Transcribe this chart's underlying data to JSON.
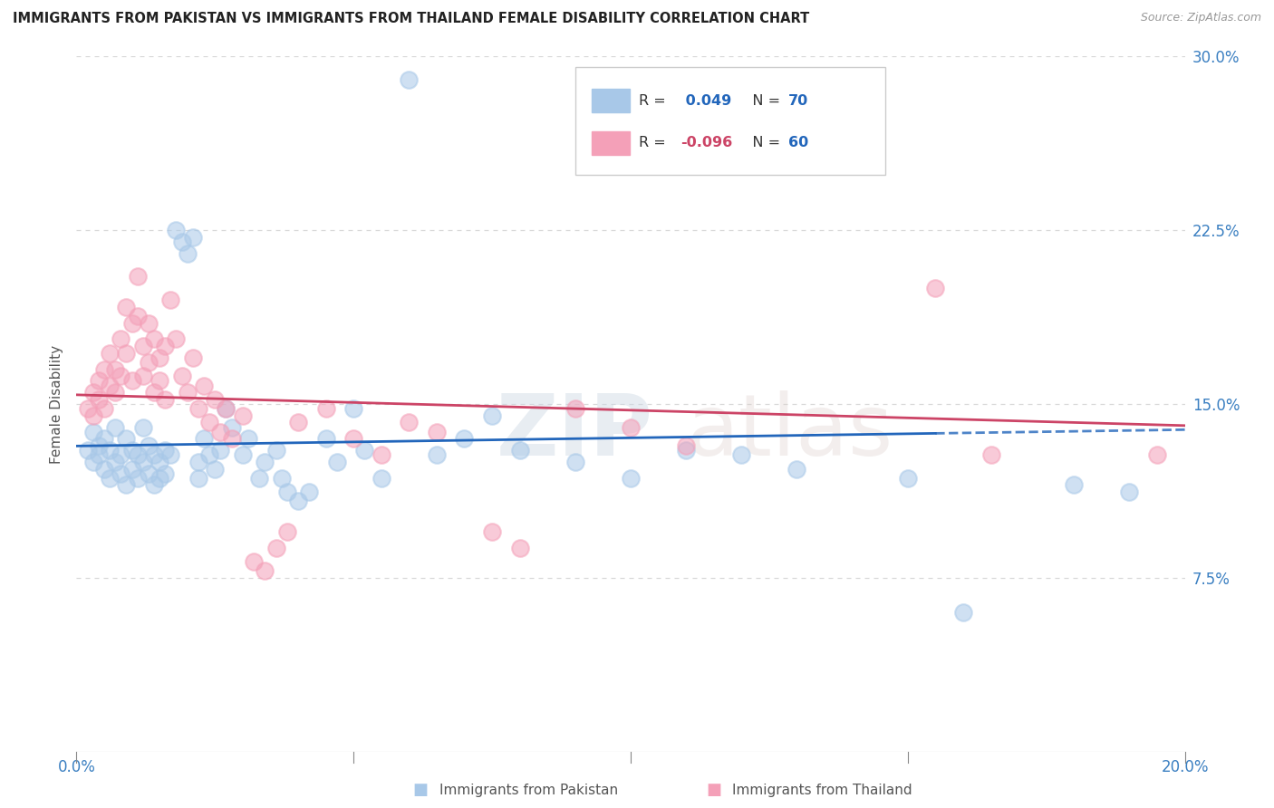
{
  "title": "IMMIGRANTS FROM PAKISTAN VS IMMIGRANTS FROM THAILAND FEMALE DISABILITY CORRELATION CHART",
  "source": "Source: ZipAtlas.com",
  "ylabel": "Female Disability",
  "xlim": [
    0.0,
    0.2
  ],
  "ylim": [
    0.0,
    0.3
  ],
  "pakistan_color": "#a8c8e8",
  "thailand_color": "#f4a0b8",
  "pakistan_R": 0.049,
  "pakistan_N": 70,
  "thailand_R": -0.096,
  "thailand_N": 60,
  "pakistan_scatter": [
    [
      0.002,
      0.13
    ],
    [
      0.003,
      0.138
    ],
    [
      0.003,
      0.125
    ],
    [
      0.004,
      0.132
    ],
    [
      0.004,
      0.128
    ],
    [
      0.005,
      0.135
    ],
    [
      0.005,
      0.122
    ],
    [
      0.006,
      0.13
    ],
    [
      0.006,
      0.118
    ],
    [
      0.007,
      0.125
    ],
    [
      0.007,
      0.14
    ],
    [
      0.008,
      0.128
    ],
    [
      0.008,
      0.12
    ],
    [
      0.009,
      0.135
    ],
    [
      0.009,
      0.115
    ],
    [
      0.01,
      0.13
    ],
    [
      0.01,
      0.122
    ],
    [
      0.011,
      0.128
    ],
    [
      0.011,
      0.118
    ],
    [
      0.012,
      0.125
    ],
    [
      0.012,
      0.14
    ],
    [
      0.013,
      0.12
    ],
    [
      0.013,
      0.132
    ],
    [
      0.014,
      0.115
    ],
    [
      0.014,
      0.128
    ],
    [
      0.015,
      0.125
    ],
    [
      0.015,
      0.118
    ],
    [
      0.016,
      0.13
    ],
    [
      0.016,
      0.12
    ],
    [
      0.017,
      0.128
    ],
    [
      0.018,
      0.225
    ],
    [
      0.019,
      0.22
    ],
    [
      0.02,
      0.215
    ],
    [
      0.021,
      0.222
    ],
    [
      0.022,
      0.125
    ],
    [
      0.022,
      0.118
    ],
    [
      0.023,
      0.135
    ],
    [
      0.024,
      0.128
    ],
    [
      0.025,
      0.122
    ],
    [
      0.026,
      0.13
    ],
    [
      0.027,
      0.148
    ],
    [
      0.028,
      0.14
    ],
    [
      0.03,
      0.128
    ],
    [
      0.031,
      0.135
    ],
    [
      0.033,
      0.118
    ],
    [
      0.034,
      0.125
    ],
    [
      0.036,
      0.13
    ],
    [
      0.037,
      0.118
    ],
    [
      0.038,
      0.112
    ],
    [
      0.04,
      0.108
    ],
    [
      0.042,
      0.112
    ],
    [
      0.045,
      0.135
    ],
    [
      0.047,
      0.125
    ],
    [
      0.05,
      0.148
    ],
    [
      0.052,
      0.13
    ],
    [
      0.055,
      0.118
    ],
    [
      0.06,
      0.29
    ],
    [
      0.065,
      0.128
    ],
    [
      0.07,
      0.135
    ],
    [
      0.075,
      0.145
    ],
    [
      0.08,
      0.13
    ],
    [
      0.09,
      0.125
    ],
    [
      0.1,
      0.118
    ],
    [
      0.11,
      0.13
    ],
    [
      0.12,
      0.128
    ],
    [
      0.13,
      0.122
    ],
    [
      0.15,
      0.118
    ],
    [
      0.16,
      0.06
    ],
    [
      0.18,
      0.115
    ],
    [
      0.19,
      0.112
    ]
  ],
  "thailand_scatter": [
    [
      0.002,
      0.148
    ],
    [
      0.003,
      0.155
    ],
    [
      0.003,
      0.145
    ],
    [
      0.004,
      0.152
    ],
    [
      0.004,
      0.16
    ],
    [
      0.005,
      0.148
    ],
    [
      0.005,
      0.165
    ],
    [
      0.006,
      0.158
    ],
    [
      0.006,
      0.172
    ],
    [
      0.007,
      0.165
    ],
    [
      0.007,
      0.155
    ],
    [
      0.008,
      0.178
    ],
    [
      0.008,
      0.162
    ],
    [
      0.009,
      0.172
    ],
    [
      0.009,
      0.192
    ],
    [
      0.01,
      0.185
    ],
    [
      0.01,
      0.16
    ],
    [
      0.011,
      0.205
    ],
    [
      0.011,
      0.188
    ],
    [
      0.012,
      0.175
    ],
    [
      0.012,
      0.162
    ],
    [
      0.013,
      0.185
    ],
    [
      0.013,
      0.168
    ],
    [
      0.014,
      0.178
    ],
    [
      0.014,
      0.155
    ],
    [
      0.015,
      0.17
    ],
    [
      0.015,
      0.16
    ],
    [
      0.016,
      0.175
    ],
    [
      0.016,
      0.152
    ],
    [
      0.017,
      0.195
    ],
    [
      0.018,
      0.178
    ],
    [
      0.019,
      0.162
    ],
    [
      0.02,
      0.155
    ],
    [
      0.021,
      0.17
    ],
    [
      0.022,
      0.148
    ],
    [
      0.023,
      0.158
    ],
    [
      0.024,
      0.142
    ],
    [
      0.025,
      0.152
    ],
    [
      0.026,
      0.138
    ],
    [
      0.027,
      0.148
    ],
    [
      0.028,
      0.135
    ],
    [
      0.03,
      0.145
    ],
    [
      0.032,
      0.082
    ],
    [
      0.034,
      0.078
    ],
    [
      0.036,
      0.088
    ],
    [
      0.038,
      0.095
    ],
    [
      0.04,
      0.142
    ],
    [
      0.045,
      0.148
    ],
    [
      0.05,
      0.135
    ],
    [
      0.055,
      0.128
    ],
    [
      0.06,
      0.142
    ],
    [
      0.065,
      0.138
    ],
    [
      0.075,
      0.095
    ],
    [
      0.08,
      0.088
    ],
    [
      0.09,
      0.148
    ],
    [
      0.1,
      0.14
    ],
    [
      0.11,
      0.132
    ],
    [
      0.155,
      0.2
    ],
    [
      0.165,
      0.128
    ],
    [
      0.195,
      0.128
    ]
  ],
  "background_color": "#ffffff",
  "grid_color": "#d8d8d8",
  "title_color": "#222222",
  "axis_label_color": "#3a7fc1",
  "pakistan_line_color": "#2266bb",
  "thailand_line_color": "#cc4466"
}
